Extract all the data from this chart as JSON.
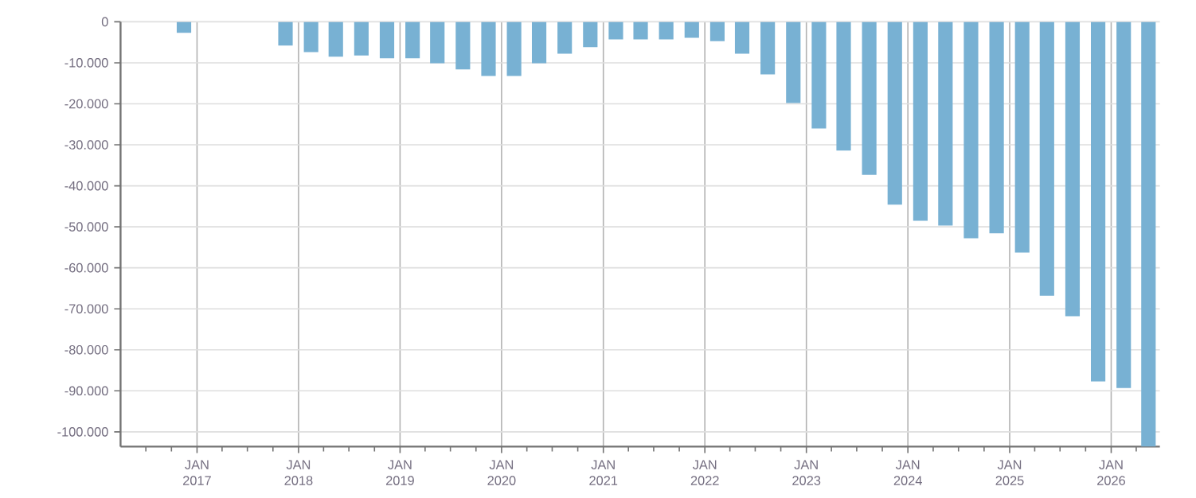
{
  "chart_data": {
    "type": "bar",
    "color": "#78b1d3",
    "x": [
      "2016-11-15",
      "2017-11-15",
      "2018-02-15",
      "2018-05-15",
      "2018-08-15",
      "2018-11-15",
      "2019-02-15",
      "2019-05-15",
      "2019-08-15",
      "2019-11-15",
      "2020-02-15",
      "2020-05-15",
      "2020-08-15",
      "2020-11-15",
      "2021-02-15",
      "2021-05-15",
      "2021-08-15",
      "2021-11-15",
      "2022-02-15",
      "2022-05-15",
      "2022-08-15",
      "2022-11-15",
      "2023-02-15",
      "2023-05-15",
      "2023-08-15",
      "2023-11-15",
      "2024-02-15",
      "2024-05-15",
      "2024-08-15",
      "2024-11-15",
      "2025-02-15",
      "2025-05-15",
      "2025-08-15",
      "2025-11-15",
      "2026-02-15",
      "2026-05-15"
    ],
    "values": [
      -2700,
      -5800,
      -7400,
      -8500,
      -8200,
      -8900,
      -8900,
      -10100,
      -11600,
      -13200,
      -13200,
      -10100,
      -7800,
      -6200,
      -4300,
      -4300,
      -4300,
      -3900,
      -4700,
      -7800,
      -12800,
      -19800,
      -26000,
      -31400,
      -37300,
      -44600,
      -48500,
      -49700,
      -52800,
      -51600,
      -56300,
      -66800,
      -71800,
      -87700,
      -89300,
      -103600
    ],
    "xlim": [
      "2016-04-01",
      "2026-06-25"
    ],
    "xticks": [
      {
        "value": "2016-07-01",
        "label": null
      },
      {
        "value": "2016-10-01",
        "label": null
      },
      {
        "value": "2017-01-01",
        "label": "JAN 2017"
      },
      {
        "value": "2017-04-01",
        "label": null
      },
      {
        "value": "2017-07-01",
        "label": null
      },
      {
        "value": "2017-10-01",
        "label": null
      },
      {
        "value": "2018-01-01",
        "label": "JAN 2018"
      },
      {
        "value": "2018-04-01",
        "label": null
      },
      {
        "value": "2018-07-01",
        "label": null
      },
      {
        "value": "2018-10-01",
        "label": null
      },
      {
        "value": "2019-01-01",
        "label": "JAN 2019"
      },
      {
        "value": "2019-04-01",
        "label": null
      },
      {
        "value": "2019-07-01",
        "label": null
      },
      {
        "value": "2019-10-01",
        "label": null
      },
      {
        "value": "2020-01-01",
        "label": "JAN 2020"
      },
      {
        "value": "2020-04-01",
        "label": null
      },
      {
        "value": "2020-07-01",
        "label": null
      },
      {
        "value": "2020-10-01",
        "label": null
      },
      {
        "value": "2021-01-01",
        "label": "JAN 2021"
      },
      {
        "value": "2021-04-01",
        "label": null
      },
      {
        "value": "2021-07-01",
        "label": null
      },
      {
        "value": "2021-10-01",
        "label": null
      },
      {
        "value": "2022-01-01",
        "label": "JAN 2022"
      },
      {
        "value": "2022-04-01",
        "label": null
      },
      {
        "value": "2022-07-01",
        "label": null
      },
      {
        "value": "2022-10-01",
        "label": null
      },
      {
        "value": "2023-01-01",
        "label": "JAN 2023"
      },
      {
        "value": "2023-04-01",
        "label": null
      },
      {
        "value": "2023-07-01",
        "label": null
      },
      {
        "value": "2023-10-01",
        "label": null
      },
      {
        "value": "2024-01-01",
        "label": "JAN 2024"
      },
      {
        "value": "2024-04-01",
        "label": null
      },
      {
        "value": "2024-07-01",
        "label": null
      },
      {
        "value": "2024-10-01",
        "label": null
      },
      {
        "value": "2025-01-01",
        "label": "JAN 2025"
      },
      {
        "value": "2025-04-01",
        "label": null
      },
      {
        "value": "2025-07-01",
        "label": null
      },
      {
        "value": "2025-10-01",
        "label": null
      },
      {
        "value": "2026-01-01",
        "label": "JAN 2026"
      },
      {
        "value": "2026-04-01",
        "label": null
      }
    ],
    "ylim": [
      -103600,
      0
    ],
    "yticks": [
      0,
      {
        "value": -10000,
        "label": "-10.000"
      },
      {
        "value": -20000,
        "label": "-20.000"
      },
      {
        "value": -30000,
        "label": "-30.000"
      },
      {
        "value": -40000,
        "label": "-40.000"
      },
      {
        "value": -50000,
        "label": "-50.000"
      },
      {
        "value": -60000,
        "label": "-60.000"
      },
      {
        "value": -70000,
        "label": "-70.000"
      },
      {
        "value": -80000,
        "label": "-80.000"
      },
      {
        "value": -90000,
        "label": "-90.000"
      },
      {
        "value": -100000,
        "label": "-100.000"
      }
    ],
    "grid": true
  }
}
